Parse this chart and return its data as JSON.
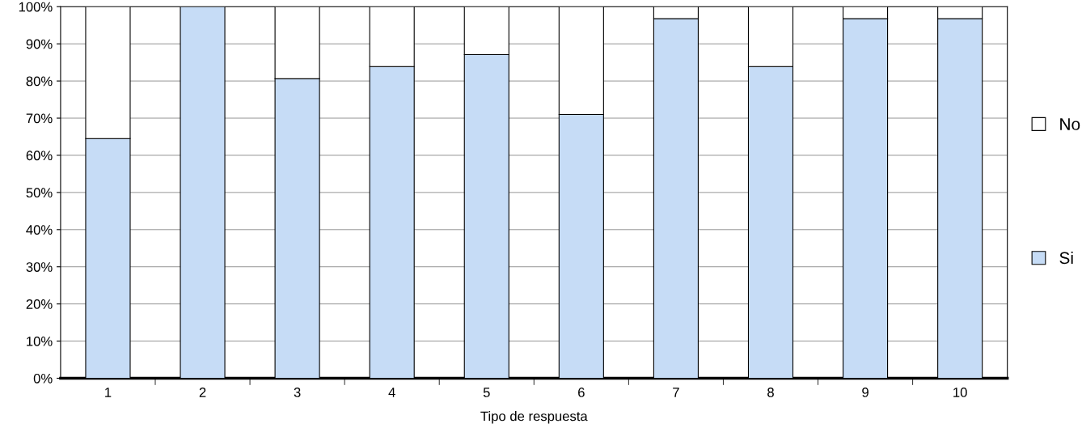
{
  "chart_data": {
    "type": "bar",
    "stacked": true,
    "xlabel": "Tipo de respuesta",
    "categories": [
      "1",
      "2",
      "3",
      "4",
      "5",
      "6",
      "7",
      "8",
      "9",
      "10"
    ],
    "series": [
      {
        "name": "Si",
        "color": "#c6dcf6",
        "values": [
          64.5,
          100,
          80.6,
          83.9,
          87.1,
          71.0,
          96.8,
          83.9,
          96.8,
          96.8
        ]
      },
      {
        "name": "No",
        "color": "#ffffff",
        "values": [
          35.5,
          null,
          19.4,
          16.1,
          12.9,
          29.0,
          3.2,
          16.1,
          3.2,
          3.2
        ]
      }
    ],
    "ylim": [
      0,
      100
    ],
    "yticks": [
      {
        "value": 0,
        "label": "0%"
      },
      {
        "value": 10,
        "label": "10%"
      },
      {
        "value": 20,
        "label": "20%"
      },
      {
        "value": 30,
        "label": "30%"
      },
      {
        "value": 40,
        "label": "40%"
      },
      {
        "value": 50,
        "label": "50%"
      },
      {
        "value": 60,
        "label": "60%"
      },
      {
        "value": 70,
        "label": "70%"
      },
      {
        "value": 80,
        "label": "80%"
      },
      {
        "value": 90,
        "label": "90%"
      },
      {
        "value": 100,
        "label": "100%"
      }
    ],
    "grid": "y",
    "legend": "right"
  }
}
